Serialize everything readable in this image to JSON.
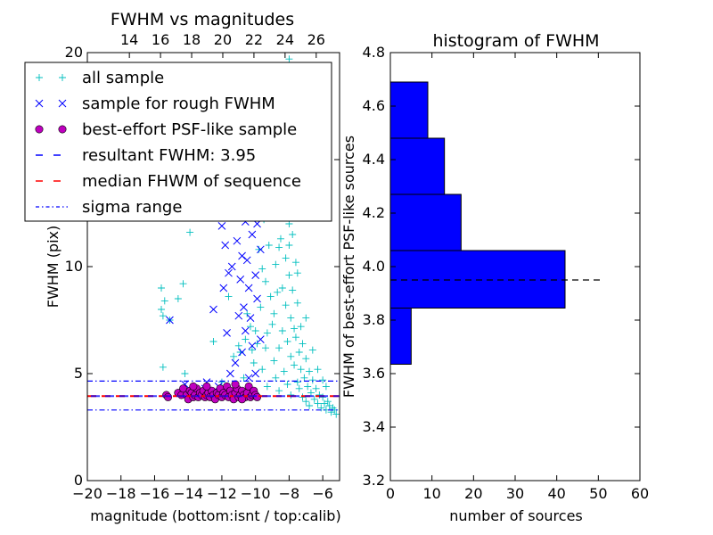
{
  "chart_data": [
    {
      "type": "scatter",
      "title": "FWHM vs magnitudes",
      "xlabel": "magnitude (bottom:isnt / top:calib)",
      "ylabel": "FWHM (pix)",
      "xlim": [
        -20,
        -5
      ],
      "ylim": [
        0,
        20
      ],
      "xticks": [
        -20,
        -18,
        -16,
        -14,
        -12,
        -10,
        -8,
        -6
      ],
      "xtick_labels": [
        "−20",
        "−18",
        "−16",
        "−14",
        "−12",
        "−10",
        "−8",
        "−6"
      ],
      "yticks": [
        0,
        5,
        10,
        15,
        20
      ],
      "ytick_labels": [
        "0",
        "5",
        "10",
        "15",
        "20"
      ],
      "top_axis": {
        "xlim": [
          11.3,
          27.5
        ],
        "ticks": [
          14,
          16,
          18,
          20,
          22,
          24,
          26
        ],
        "tick_labels": [
          "14",
          "16",
          "18",
          "20",
          "22",
          "24",
          "26"
        ]
      },
      "lines": {
        "resultant_fwhm": 3.95,
        "median_fwhm": 3.95,
        "sigma_low": 3.3,
        "sigma_high": 4.65
      },
      "legend": {
        "placement": "upper-left",
        "entries": [
          {
            "label": "all sample",
            "color": "#00bfbf",
            "marker": "plus"
          },
          {
            "label": "sample for rough FWHM",
            "color": "#0000ff",
            "marker": "x"
          },
          {
            "label": "best-effort PSF-like sample",
            "color": "#bf00bf",
            "marker": "circle"
          },
          {
            "label": "resultant FWHM: 3.95",
            "color": "#0000ff",
            "marker": "dashed"
          },
          {
            "label": "median FHWM of sequence",
            "color": "#ff0000",
            "marker": "dashed"
          },
          {
            "label": "sigma range",
            "color": "#0000ff",
            "marker": "dashdot"
          }
        ]
      },
      "series": [
        {
          "name": "all sample",
          "color": "#00bfbf",
          "points": [
            [
              -15.6,
              9.0
            ],
            [
              -15.6,
              8.0
            ],
            [
              -15.5,
              5.3
            ],
            [
              -15.4,
              8.4
            ],
            [
              -15.5,
              7.7
            ],
            [
              -15.1,
              7.5
            ],
            [
              -14.6,
              8.5
            ],
            [
              -14.3,
              9.2
            ],
            [
              -14.2,
              5.0
            ],
            [
              -13.9,
              11.6
            ],
            [
              -12.5,
              6.5
            ],
            [
              -12.0,
              4.6
            ],
            [
              -11.6,
              8.6
            ],
            [
              -11.3,
              5.8
            ],
            [
              -11.0,
              6.3
            ],
            [
              -10.9,
              6.0
            ],
            [
              -10.7,
              4.8
            ],
            [
              -10.6,
              6.6
            ],
            [
              -10.5,
              7.8
            ],
            [
              -10.3,
              7.2
            ],
            [
              -10.2,
              6.1
            ],
            [
              -10.1,
              5.5
            ],
            [
              -10.0,
              7.0
            ],
            [
              -9.9,
              6.4
            ],
            [
              -9.8,
              10.8
            ],
            [
              -9.7,
              8.1
            ],
            [
              -9.6,
              5.2
            ],
            [
              -9.5,
              12.2
            ],
            [
              -9.4,
              9.3
            ],
            [
              -9.3,
              6.9
            ],
            [
              -9.3,
              4.4
            ],
            [
              -9.2,
              11.0
            ],
            [
              -9.1,
              8.6
            ],
            [
              -9.0,
              13.5
            ],
            [
              -9.0,
              7.3
            ],
            [
              -8.9,
              5.6
            ],
            [
              -8.8,
              10.1
            ],
            [
              -8.8,
              4.8
            ],
            [
              -8.7,
              12.5
            ],
            [
              -8.7,
              8.8
            ],
            [
              -8.6,
              6.2
            ],
            [
              -8.6,
              4.2
            ],
            [
              -8.5,
              14.1
            ],
            [
              -8.5,
              11.3
            ],
            [
              -8.4,
              9.0
            ],
            [
              -8.4,
              7.0
            ],
            [
              -8.3,
              5.1
            ],
            [
              -8.3,
              13.2
            ],
            [
              -8.2,
              10.4
            ],
            [
              -8.2,
              8.2
            ],
            [
              -8.1,
              6.5
            ],
            [
              -8.1,
              4.5
            ],
            [
              -8.0,
              19.7
            ],
            [
              -8.0,
              12.0
            ],
            [
              -8.0,
              9.6
            ],
            [
              -7.9,
              7.6
            ],
            [
              -7.9,
              5.8
            ],
            [
              -7.9,
              4.0
            ],
            [
              -7.8,
              11.5
            ],
            [
              -7.8,
              8.9
            ],
            [
              -7.7,
              7.1
            ],
            [
              -7.7,
              5.4
            ],
            [
              -7.6,
              10.2
            ],
            [
              -7.6,
              6.7
            ],
            [
              -7.5,
              4.6
            ],
            [
              -7.5,
              8.3
            ],
            [
              -7.4,
              6.0
            ],
            [
              -7.4,
              4.3
            ],
            [
              -7.3,
              7.2
            ],
            [
              -7.3,
              5.2
            ],
            [
              -7.2,
              3.9
            ],
            [
              -7.2,
              6.4
            ],
            [
              -7.1,
              4.8
            ],
            [
              -7.0,
              5.7
            ],
            [
              -7.0,
              3.7
            ],
            [
              -6.9,
              4.4
            ],
            [
              -6.8,
              5.1
            ],
            [
              -6.8,
              3.5
            ],
            [
              -6.7,
              4.1
            ],
            [
              -6.6,
              4.7
            ],
            [
              -6.5,
              3.8
            ],
            [
              -6.4,
              4.3
            ],
            [
              -6.3,
              3.6
            ],
            [
              -6.2,
              4.0
            ],
            [
              -6.1,
              3.4
            ],
            [
              -6.0,
              3.9
            ],
            [
              -5.9,
              3.6
            ],
            [
              -5.8,
              3.3
            ],
            [
              -5.7,
              3.7
            ],
            [
              -5.6,
              3.5
            ],
            [
              -5.5,
              3.2
            ],
            [
              -5.4,
              3.4
            ],
            [
              -5.3,
              3.3
            ],
            [
              -5.2,
              3.1
            ],
            [
              -8.8,
              13.8
            ],
            [
              -9.2,
              12.8
            ],
            [
              -8.0,
              11.0
            ],
            [
              -7.5,
              9.7
            ],
            [
              -8.6,
              10.9
            ],
            [
              -9.6,
              9.9
            ],
            [
              -7.0,
              7.6
            ],
            [
              -6.6,
              6.1
            ],
            [
              -6.3,
              5.2
            ],
            [
              -6.0,
              4.7
            ],
            [
              -5.8,
              4.4
            ],
            [
              -9.4,
              6.2
            ],
            [
              -8.9,
              7.8
            ],
            [
              -9.7,
              13.2
            ],
            [
              -8.3,
              14.6
            ],
            [
              -7.7,
              12.7
            ]
          ]
        },
        {
          "name": "sample for rough FWHM",
          "color": "#0000ff",
          "points": [
            [
              -15.1,
              7.5
            ],
            [
              -14.3,
              4.0
            ],
            [
              -14.2,
              4.5
            ],
            [
              -13.0,
              4.3
            ],
            [
              -12.9,
              4.6
            ],
            [
              -12.2,
              4.4
            ],
            [
              -12.5,
              8.0
            ],
            [
              -12.0,
              11.9
            ],
            [
              -11.8,
              11.0
            ],
            [
              -11.9,
              9.0
            ],
            [
              -11.6,
              9.7
            ],
            [
              -11.7,
              6.9
            ],
            [
              -11.4,
              10.0
            ],
            [
              -11.3,
              12.3
            ],
            [
              -11.2,
              5.5
            ],
            [
              -11.0,
              7.7
            ],
            [
              -11.1,
              11.2
            ],
            [
              -10.8,
              10.5
            ],
            [
              -10.9,
              9.4
            ],
            [
              -10.7,
              8.1
            ],
            [
              -10.8,
              6.0
            ],
            [
              -10.6,
              7.0
            ],
            [
              -10.6,
              12.1
            ],
            [
              -10.4,
              9.0
            ],
            [
              -10.5,
              10.3
            ],
            [
              -10.3,
              7.6
            ],
            [
              -10.2,
              11.5
            ],
            [
              -10.2,
              6.3
            ],
            [
              -10.0,
              9.6
            ],
            [
              -10.0,
              5.0
            ],
            [
              -9.9,
              8.5
            ],
            [
              -9.9,
              12.0
            ],
            [
              -9.7,
              10.8
            ],
            [
              -9.7,
              6.6
            ],
            [
              -11.5,
              5.0
            ],
            [
              -10.4,
              4.8
            ]
          ]
        },
        {
          "name": "best-effort PSF-like sample",
          "color": "#bf00bf",
          "points": [
            [
              -15.3,
              4.0
            ],
            [
              -15.2,
              3.9
            ],
            [
              -14.6,
              4.1
            ],
            [
              -14.4,
              4.0
            ],
            [
              -14.3,
              4.3
            ],
            [
              -14.1,
              4.0
            ],
            [
              -14.0,
              3.8
            ],
            [
              -13.9,
              4.2
            ],
            [
              -13.8,
              4.1
            ],
            [
              -13.7,
              3.9
            ],
            [
              -13.6,
              4.0
            ],
            [
              -13.5,
              4.3
            ],
            [
              -13.4,
              3.9
            ],
            [
              -13.3,
              4.1
            ],
            [
              -13.2,
              4.0
            ],
            [
              -13.1,
              4.2
            ],
            [
              -13.0,
              3.9
            ],
            [
              -12.9,
              4.0
            ],
            [
              -12.8,
              4.1
            ],
            [
              -12.7,
              3.9
            ],
            [
              -12.6,
              4.2
            ],
            [
              -12.5,
              4.0
            ],
            [
              -12.4,
              3.8
            ],
            [
              -12.3,
              4.1
            ],
            [
              -12.2,
              4.0
            ],
            [
              -12.1,
              4.3
            ],
            [
              -12.0,
              3.9
            ],
            [
              -11.9,
              4.1
            ],
            [
              -11.8,
              4.0
            ],
            [
              -11.7,
              4.4
            ],
            [
              -11.6,
              3.9
            ],
            [
              -11.5,
              4.2
            ],
            [
              -11.4,
              4.0
            ],
            [
              -11.3,
              3.8
            ],
            [
              -11.2,
              4.1
            ],
            [
              -11.1,
              4.3
            ],
            [
              -11.0,
              3.9
            ],
            [
              -10.9,
              4.0
            ],
            [
              -10.8,
              4.2
            ],
            [
              -10.7,
              4.0
            ],
            [
              -10.6,
              3.9
            ],
            [
              -10.5,
              4.1
            ],
            [
              -10.4,
              4.4
            ],
            [
              -10.3,
              3.9
            ],
            [
              -10.2,
              4.0
            ],
            [
              -10.1,
              4.2
            ],
            [
              -10.0,
              4.0
            ],
            [
              -9.9,
              3.9
            ],
            [
              -12.9,
              4.4
            ],
            [
              -11.2,
              4.5
            ],
            [
              -10.8,
              3.8
            ],
            [
              -13.7,
              4.4
            ]
          ]
        }
      ]
    },
    {
      "type": "bar",
      "orientation": "horizontal",
      "title": "histogram of FWHM",
      "xlabel": "number of sources",
      "ylabel": "FWHM of best-effort PSF-like sources",
      "xlim": [
        0,
        60
      ],
      "ylim": [
        3.2,
        4.8
      ],
      "xticks": [
        0,
        10,
        20,
        30,
        40,
        50,
        60
      ],
      "yticks": [
        3.2,
        3.4,
        3.6,
        3.8,
        4.0,
        4.2,
        4.4,
        4.6,
        4.8
      ],
      "ytick_labels": [
        "3.2",
        "3.4",
        "3.6",
        "3.8",
        "4.0",
        "4.2",
        "4.4",
        "4.6",
        "4.8"
      ],
      "color": "#0000ff",
      "bins": [
        {
          "low": 3.635,
          "high": 3.845,
          "count": 5
        },
        {
          "low": 3.845,
          "high": 4.06,
          "count": 42
        },
        {
          "low": 4.06,
          "high": 4.27,
          "count": 17
        },
        {
          "low": 4.27,
          "high": 4.48,
          "count": 13
        },
        {
          "low": 4.48,
          "high": 4.69,
          "count": 9
        }
      ],
      "reference_line": {
        "value": 3.95,
        "x_end": 51
      }
    }
  ]
}
